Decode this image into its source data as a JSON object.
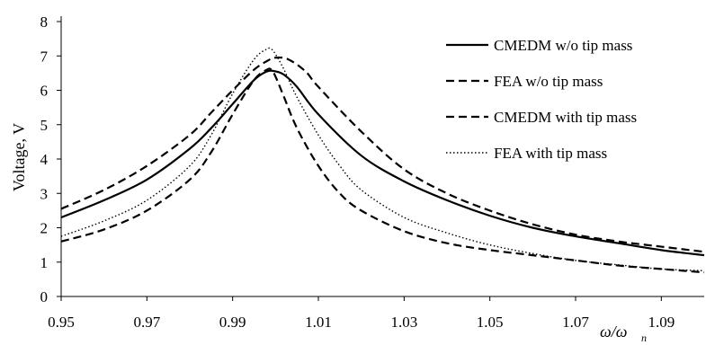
{
  "chart_data": {
    "type": "line",
    "title": "",
    "xlabel": "ω/ω",
    "xlabel_subscript": "n",
    "ylabel": "Voltage, V",
    "xlim": [
      0.95,
      1.1
    ],
    "ylim": [
      0,
      8
    ],
    "xticks": [
      "0.95",
      "0.97",
      "0.99",
      "1.01",
      "1.03",
      "1.05",
      "1.07",
      "1.09"
    ],
    "yticks": [
      "0",
      "1",
      "2",
      "3",
      "4",
      "5",
      "6",
      "7",
      "8"
    ],
    "grid": false,
    "legend_position": "top-right",
    "series": [
      {
        "name": "CMEDM w/o tip mass",
        "style": "solid",
        "x": [
          0.95,
          0.96,
          0.97,
          0.98,
          0.985,
          0.99,
          0.995,
          0.998,
          1.0,
          1.002,
          1.005,
          1.01,
          1.02,
          1.03,
          1.04,
          1.05,
          1.06,
          1.07,
          1.08,
          1.09,
          1.1
        ],
        "y": [
          2.3,
          2.8,
          3.4,
          4.3,
          4.9,
          5.6,
          6.3,
          6.55,
          6.55,
          6.45,
          6.1,
          5.3,
          4.1,
          3.35,
          2.8,
          2.35,
          2.0,
          1.75,
          1.55,
          1.35,
          1.2
        ]
      },
      {
        "name": "FEA w/o tip mass",
        "style": "dashed",
        "x": [
          0.95,
          0.96,
          0.97,
          0.98,
          0.985,
          0.99,
          0.995,
          0.998,
          0.999,
          1.0,
          1.002,
          1.005,
          1.01,
          1.015,
          1.02,
          1.03,
          1.04,
          1.05,
          1.06,
          1.07,
          1.08,
          1.09,
          1.1
        ],
        "y": [
          1.6,
          1.95,
          2.5,
          3.4,
          4.2,
          5.3,
          6.3,
          6.6,
          6.6,
          6.4,
          5.8,
          4.9,
          3.8,
          3.0,
          2.5,
          1.9,
          1.55,
          1.35,
          1.2,
          1.05,
          0.9,
          0.8,
          0.7
        ]
      },
      {
        "name": "CMEDM with tip mass",
        "style": "dashed",
        "x": [
          0.95,
          0.96,
          0.97,
          0.98,
          0.985,
          0.99,
          0.995,
          0.998,
          1.0,
          1.003,
          1.007,
          1.01,
          1.02,
          1.03,
          1.04,
          1.05,
          1.06,
          1.07,
          1.08,
          1.09,
          1.1
        ],
        "y": [
          2.55,
          3.1,
          3.8,
          4.7,
          5.35,
          6.0,
          6.6,
          6.85,
          6.95,
          6.9,
          6.55,
          6.1,
          4.8,
          3.7,
          3.0,
          2.5,
          2.1,
          1.8,
          1.6,
          1.45,
          1.3
        ]
      },
      {
        "name": "FEA with tip mass",
        "style": "dotted",
        "x": [
          0.95,
          0.96,
          0.97,
          0.98,
          0.985,
          0.99,
          0.995,
          0.998,
          0.999,
          1.0,
          1.002,
          1.005,
          1.01,
          1.015,
          1.02,
          1.03,
          1.04,
          1.05,
          1.06,
          1.07,
          1.08,
          1.09,
          1.1
        ],
        "y": [
          1.75,
          2.2,
          2.8,
          3.8,
          4.7,
          5.9,
          6.9,
          7.2,
          7.2,
          7.05,
          6.6,
          5.8,
          4.7,
          3.8,
          3.1,
          2.3,
          1.85,
          1.5,
          1.25,
          1.05,
          0.92,
          0.8,
          0.75
        ]
      }
    ]
  }
}
